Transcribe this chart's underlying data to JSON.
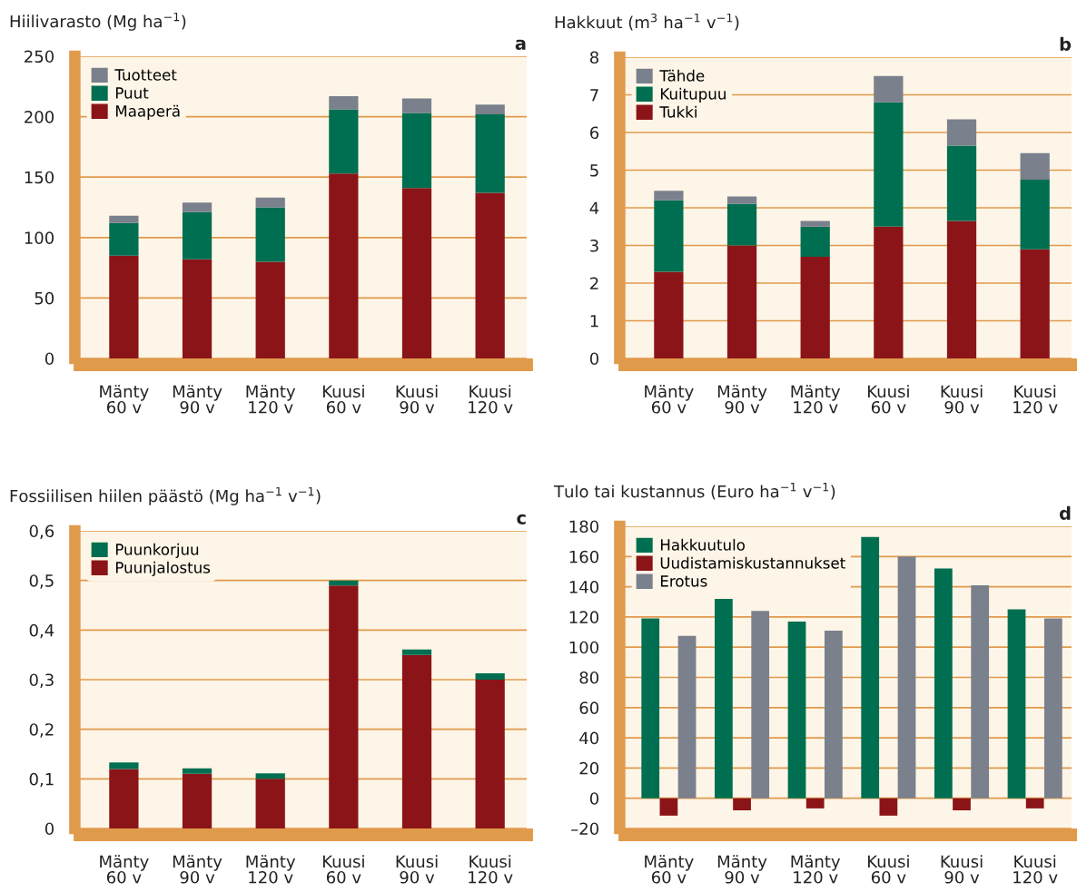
{
  "chart_data": [
    {
      "type": "bar",
      "title": "Hiilivarasto (Mg ha$^{−1}$)",
      "annotations": [
        "a"
      ],
      "stacked": true,
      "grid": "y",
      "legend": "top left",
      "categories": [
        "Mänty\n60 v",
        "Mänty\n90 v",
        "Mänty\n120 v",
        "Kuusi\n60 v",
        "Kuusi\n90 v",
        "Kuusi\n120 v"
      ],
      "ylim": [
        0,
        250
      ],
      "yticks": [
        0,
        50,
        100,
        150,
        200,
        250
      ],
      "series": [
        {
          "name": "Maaperä",
          "color": "#8b1418",
          "values": [
            85,
            82,
            80,
            153,
            141,
            137
          ]
        },
        {
          "name": "Puut",
          "color": "#006e50",
          "values": [
            27,
            39,
            45,
            53,
            62,
            65
          ]
        },
        {
          "name": "Tuotteet",
          "color": "#7a808c",
          "values": [
            6,
            8,
            8,
            11,
            12,
            8
          ]
        }
      ]
    },
    {
      "type": "bar",
      "title": "Hakkuut (m$^{3}$ ha$^{−1}$ v$^{−1}$)",
      "annotations": [
        "b"
      ],
      "stacked": true,
      "grid": "y",
      "legend": "top left",
      "categories": [
        "Mänty\n60 v",
        "Mänty\n90 v",
        "Mänty\n120 v",
        "Kuusi\n60 v",
        "Kuusi\n90 v",
        "Kuusi\n120 v"
      ],
      "ylim": [
        0,
        8
      ],
      "yticks": [
        0,
        1,
        2,
        3,
        4,
        5,
        6,
        7,
        8
      ],
      "series": [
        {
          "name": "Tukki",
          "color": "#8b1418",
          "values": [
            2.3,
            3.0,
            2.7,
            3.5,
            3.65,
            2.9
          ]
        },
        {
          "name": "Kuitupuu",
          "color": "#006e50",
          "values": [
            1.9,
            1.1,
            0.8,
            3.3,
            2.0,
            1.85
          ]
        },
        {
          "name": "Tähde",
          "color": "#7a808c",
          "values": [
            0.25,
            0.2,
            0.15,
            0.7,
            0.7,
            0.7
          ]
        }
      ]
    },
    {
      "type": "bar",
      "title": "Fossiilisen hiilen päästö (Mg ha$^{−1}$ v$^{−1}$)",
      "annotations": [
        "c"
      ],
      "stacked": true,
      "grid": "y",
      "legend": "top left",
      "categories": [
        "Mänty\n60 v",
        "Mänty\n90 v",
        "Mänty\n120 v",
        "Kuusi\n60 v",
        "Kuusi\n90 v",
        "Kuusi\n120 v"
      ],
      "ylim": [
        0,
        0.6
      ],
      "yticks": [
        0,
        {
          "value": 0.1,
          "label": "0,1"
        },
        {
          "value": 0.2,
          "label": "0,2"
        },
        {
          "value": 0.3,
          "label": "0,3"
        },
        {
          "value": 0.4,
          "label": "0,4"
        },
        {
          "value": 0.5,
          "label": "0,5"
        },
        {
          "value": 0.6,
          "label": "0,6"
        }
      ],
      "series": [
        {
          "name": "Puunjalostus",
          "color": "#8b1418",
          "values": [
            0.12,
            0.11,
            0.1,
            0.49,
            0.35,
            0.3
          ]
        },
        {
          "name": "Puunkorjuu",
          "color": "#006e50",
          "values": [
            0.013,
            0.011,
            0.011,
            0.01,
            0.011,
            0.013
          ]
        }
      ]
    },
    {
      "type": "bar",
      "title": "Tulo tai kustannus (Euro ha$^{−1}$ v$^{−1}$)",
      "annotations": [
        "d"
      ],
      "grid": "y",
      "legend": "top left",
      "categories": [
        "Mänty\n60 v",
        "Mänty\n90 v",
        "Mänty\n120 v",
        "Kuusi\n60 v",
        "Kuusi\n90 v",
        "Kuusi\n120 v"
      ],
      "ylim": [
        -20,
        180
      ],
      "yticks": [
        {
          "value": -20,
          "label": "–20"
        },
        0,
        20,
        40,
        60,
        80,
        100,
        120,
        140,
        160,
        180
      ],
      "series": [
        {
          "name": "Hakkuutulo",
          "color": "#006e50",
          "values": [
            119,
            132,
            117,
            173,
            152,
            125
          ]
        },
        {
          "name": "Uudistamiskustannukset",
          "color": "#8b1418",
          "values": [
            -11.5,
            -8,
            -6.7,
            -11.5,
            -8,
            -6.7
          ]
        },
        {
          "name": "Erotus",
          "color": "#7a808c",
          "values": [
            107.5,
            124,
            111,
            160,
            141,
            119
          ]
        }
      ]
    }
  ]
}
